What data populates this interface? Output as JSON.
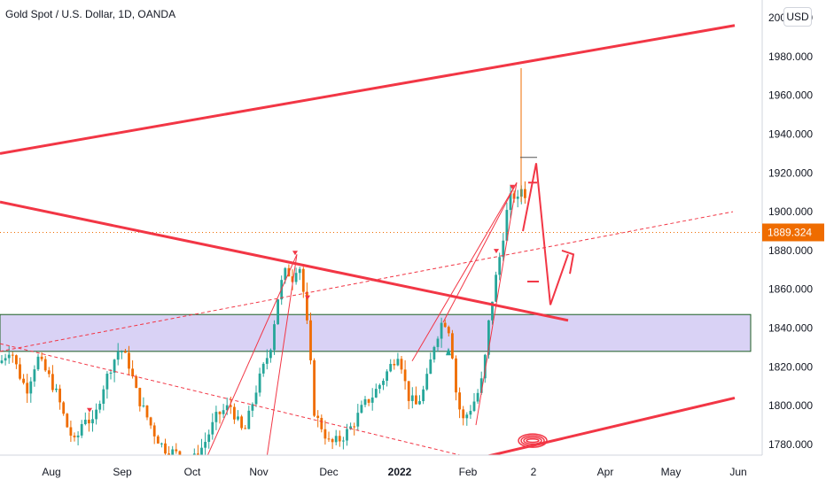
{
  "header": {
    "symbol_title": "Gold Spot / U.S. Dollar, 1D, OANDA",
    "currency_label": "USD"
  },
  "chart_data": {
    "type": "candlestick",
    "title": "Gold Spot / U.S. Dollar, 1D, OANDA",
    "ylim": [
      1774,
      2005
    ],
    "y_ticks": [
      "1780.000",
      "1800.000",
      "1820.000",
      "1840.000",
      "1860.000",
      "1880.000",
      "1900.000",
      "1920.000",
      "1940.000",
      "1960.000",
      "1980.000",
      "2000.000"
    ],
    "x_ticks": [
      {
        "label": "Aug",
        "bold": false
      },
      {
        "label": "Sep",
        "bold": false
      },
      {
        "label": "Oct",
        "bold": false
      },
      {
        "label": "Nov",
        "bold": false
      },
      {
        "label": "Dec",
        "bold": false
      },
      {
        "label": "2022",
        "bold": true
      },
      {
        "label": "Feb",
        "bold": false
      },
      {
        "label": "2",
        "bold": false
      },
      {
        "label": "Apr",
        "bold": false
      },
      {
        "label": "May",
        "bold": false
      },
      {
        "label": "Jun",
        "bold": false
      }
    ],
    "current_price": "1889.324",
    "current_price_value": 1889.324,
    "colors": {
      "up": "#26a69a",
      "down": "#ef6c00",
      "drawing": "#f23645",
      "zone_fill": "#d9d2f5",
      "zone_border": "#1b5e20",
      "price_line": "#ef6c00"
    },
    "support_zone": {
      "from": 1828,
      "to": 1847
    },
    "notable_highs": {
      "nov": 1877,
      "feb_spike": 1974
    }
  }
}
